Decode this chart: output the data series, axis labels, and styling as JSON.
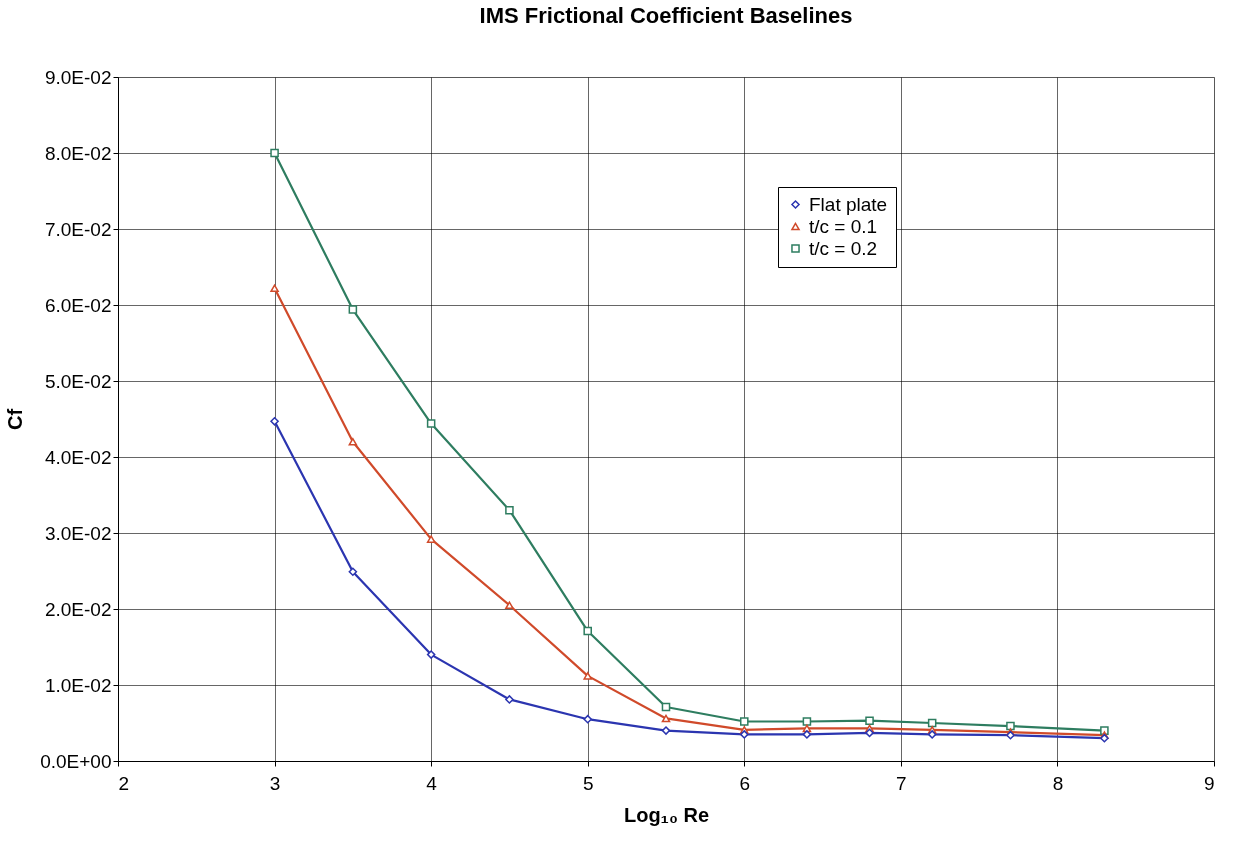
{
  "chart_data": {
    "type": "line",
    "title": "IMS Frictional Coefficient Baselines",
    "xlabel": "Log₁₀ Re",
    "ylabel": "Cf",
    "x": [
      3,
      3.5,
      4,
      4.5,
      5,
      5.5,
      6,
      6.4,
      6.8,
      7.2,
      7.7,
      8.3
    ],
    "series": [
      {
        "name": "Flat plate",
        "color": "#2b35b0",
        "marker": "diamond",
        "values": [
          0.0447,
          0.0249,
          0.014,
          0.0081,
          0.0055,
          0.004,
          0.0035,
          0.0035,
          0.0037,
          0.0035,
          0.0034,
          0.003
        ]
      },
      {
        "name": "t/c = 0.1",
        "color": "#d04a2a",
        "marker": "triangle",
        "values": [
          0.0622,
          0.042,
          0.0292,
          0.0205,
          0.0112,
          0.0056,
          0.0041,
          0.0043,
          0.0043,
          0.0041,
          0.0038,
          0.0034
        ]
      },
      {
        "name": "t/c = 0.2",
        "color": "#2e7d60",
        "marker": "square",
        "values": [
          0.08,
          0.0594,
          0.0444,
          0.033,
          0.0171,
          0.0071,
          0.0052,
          0.0052,
          0.0053,
          0.005,
          0.0046,
          0.004
        ]
      }
    ],
    "xlim": [
      2,
      9
    ],
    "xticks": [
      2,
      3,
      4,
      5,
      6,
      7,
      8,
      9
    ],
    "ylim": [
      0,
      0.09
    ],
    "yticks": [
      {
        "value": 0,
        "label": "0.0E+00"
      },
      {
        "value": 0.01,
        "label": "1.0E-02"
      },
      {
        "value": 0.02,
        "label": "2.0E-02"
      },
      {
        "value": 0.03,
        "label": "3.0E-02"
      },
      {
        "value": 0.04,
        "label": "4.0E-02"
      },
      {
        "value": 0.05,
        "label": "5.0E-02"
      },
      {
        "value": 0.06,
        "label": "6.0E-02"
      },
      {
        "value": 0.07,
        "label": "7.0E-02"
      },
      {
        "value": 0.08,
        "label": "8.0E-02"
      },
      {
        "value": 0.09,
        "label": "9.0E-02"
      }
    ],
    "grid": true,
    "legend": "right",
    "line_style": "solid"
  }
}
